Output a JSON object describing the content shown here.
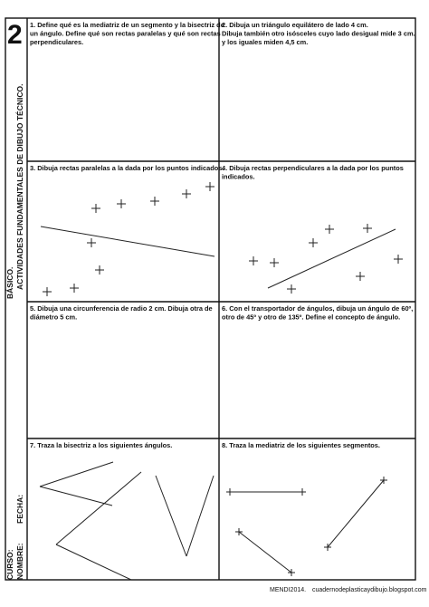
{
  "sheet_number": "2",
  "sidebar": {
    "lines": [
      "BÁSICO.",
      "ACTIVIDADES FUNDAMENTALES DE DIBUJO TÉCNICO."
    ],
    "fields": [
      "CURSO:",
      "NOMBRE:",
      "FECHA:"
    ]
  },
  "cells": [
    {
      "lines": [
        "1. Define qué es la mediatriz de un segmento y la bisectriz de",
        "un ángulo. Define qué son rectas paralelas y qué son rectas",
        "perpendiculares."
      ]
    },
    {
      "lines": [
        "2. Dibuja un triángulo equilátero de lado 4 cm.",
        "Dibuja también otro isósceles cuyo lado desigual mide  3 cm.",
        "y los iguales miden 4,5 cm."
      ]
    },
    {
      "lines": [
        "3. Dibuja rectas paralelas  a la dada por los puntos indicados."
      ]
    },
    {
      "lines": [
        "4. Dibuja rectas perpendiculares  a la dada por los puntos",
        "indicados."
      ]
    },
    {
      "lines": [
        "5. Dibuja una circunferencia de radio 2 cm. Dibuja otra de",
        "diámetro 5 cm."
      ]
    },
    {
      "lines": [
        "6. Con el transportador de ángulos, dibuja un ángulo de 60º,",
        "otro de 45º y otro de 135º. Define el concepto de ángulo."
      ]
    },
    {
      "lines": [
        "7. Traza la bisectriz a los siguientes ángulos."
      ]
    },
    {
      "lines": [
        "8. Traza la mediatriz de los siguientes segmentos."
      ]
    }
  ],
  "footer": {
    "left": "MENDI2014.",
    "right": "cuadernodeplasticaydibujo.blogspot.com"
  }
}
